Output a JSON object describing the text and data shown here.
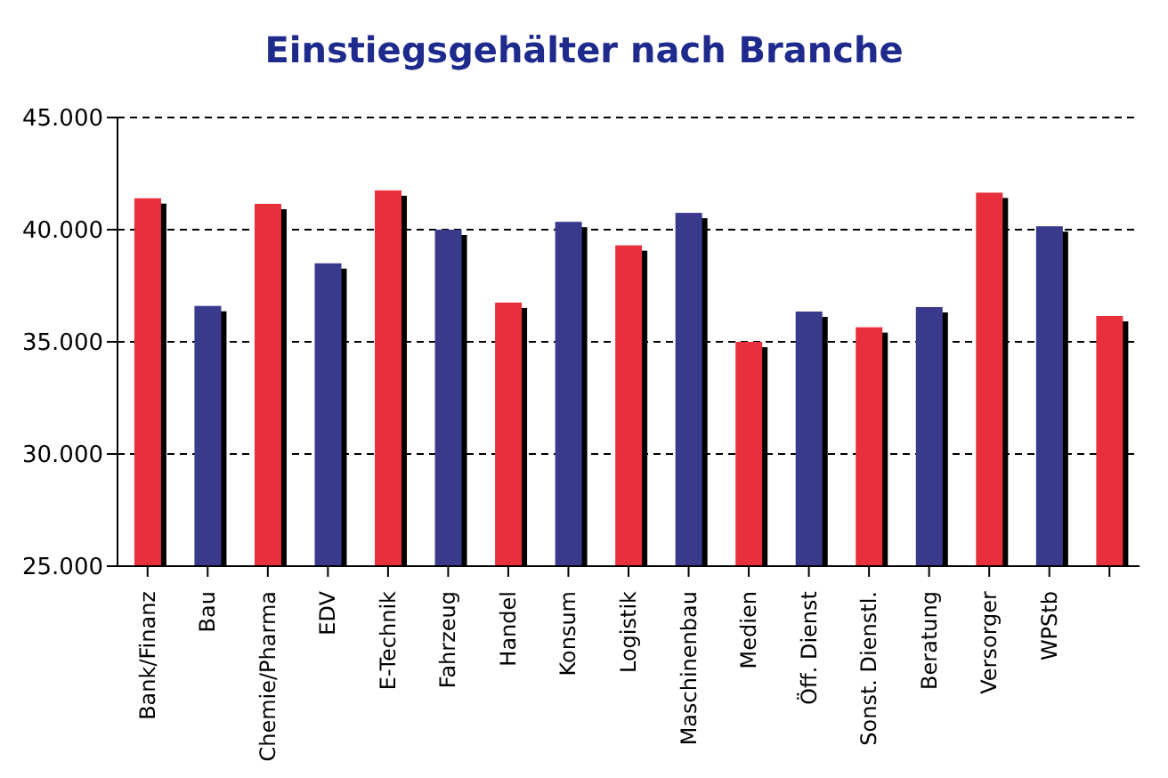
{
  "chart_data": {
    "type": "bar",
    "title": "Einstiegsgehälter nach Branche",
    "categories": [
      "Bank/Finanz",
      "Bau",
      "Chemie/Pharma",
      "EDV",
      "E-Technik",
      "Fahrzeug",
      "Handel",
      "Konsum",
      "Logistik",
      "Maschinenbau",
      "Medien",
      "Öff. Dienst",
      "Sonst. Dienstl.",
      "Beratung",
      "Versorger",
      "WPStb",
      null
    ],
    "values": [
      41400,
      36600,
      41150,
      38500,
      41750,
      40000,
      36750,
      40350,
      39300,
      40750,
      35000,
      36350,
      35650,
      36550,
      41650,
      40150,
      36150
    ],
    "colors": [
      "#e8303c",
      "#3a3a8c",
      "#e8303c",
      "#3a3a8c",
      "#e8303c",
      "#3a3a8c",
      "#e8303c",
      "#3a3a8c",
      "#e8303c",
      "#3a3a8c",
      "#e8303c",
      "#3a3a8c",
      "#e8303c",
      "#3a3a8c",
      "#e8303c",
      "#3a3a8c",
      "#e8303c"
    ],
    "ylim": [
      25000,
      45000
    ],
    "yticks": [
      {
        "value": 25000,
        "label": "25.000"
      },
      {
        "value": 30000,
        "label": "30.000"
      },
      {
        "value": 35000,
        "label": "35.000"
      },
      {
        "value": 40000,
        "label": "40.000"
      },
      {
        "value": 45000,
        "label": "45.000"
      }
    ],
    "grid": "y"
  }
}
